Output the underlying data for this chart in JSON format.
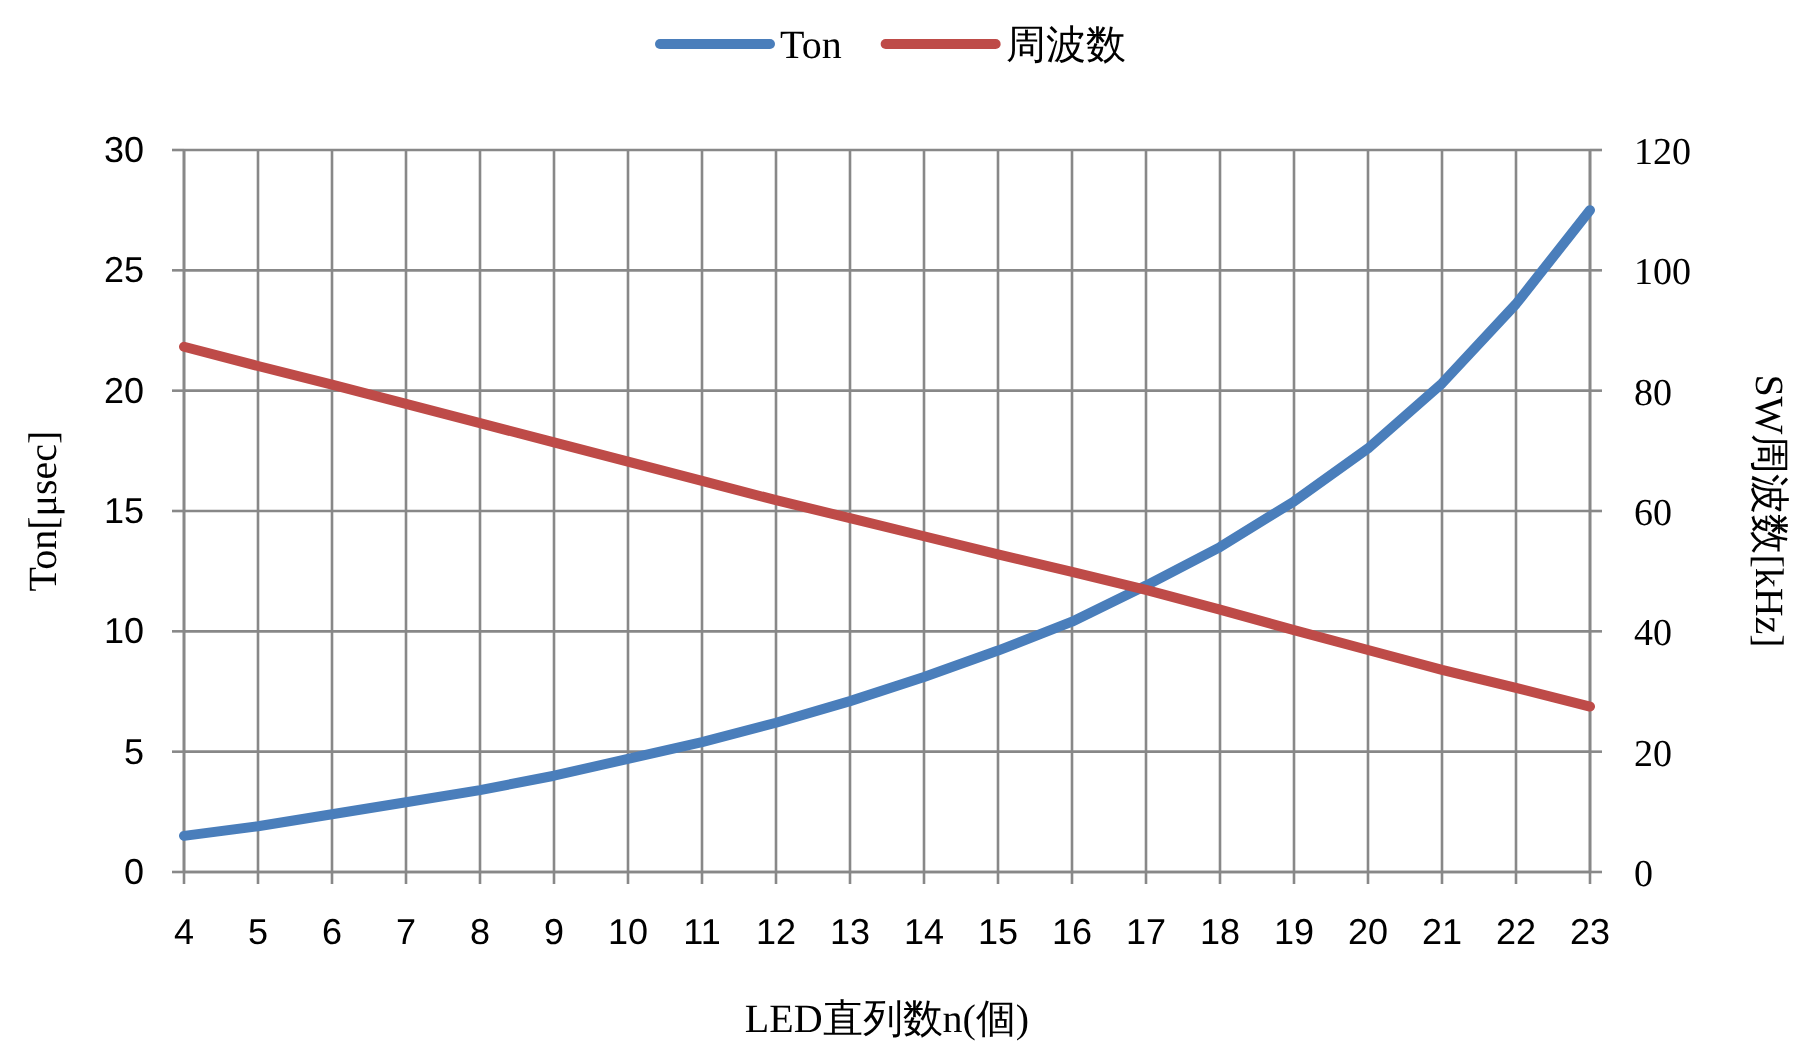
{
  "chart_data": {
    "type": "line",
    "xlabel": "LED直列数n(個)",
    "ylabel": "Ton[μsec]",
    "y2label": "SW周波数[kHz]",
    "categories": [
      "4",
      "5",
      "6",
      "7",
      "8",
      "9",
      "10",
      "11",
      "12",
      "13",
      "14",
      "15",
      "16",
      "17",
      "18",
      "19",
      "20",
      "21",
      "22",
      "23"
    ],
    "series": [
      {
        "name": "Ton",
        "color": "#4a7ebb",
        "values": [
          1.5,
          1.9,
          2.4,
          2.9,
          3.4,
          4.0,
          4.7,
          5.4,
          6.2,
          7.1,
          8.1,
          9.2,
          10.4,
          11.9,
          13.5,
          15.4,
          17.6,
          20.3,
          23.6,
          27.5
        ]
      },
      {
        "name": "周波数",
        "color": "#be4b48",
        "axis": "y2",
        "values": [
          87.3,
          84.1,
          81.0,
          77.8,
          74.6,
          71.4,
          68.2,
          65.0,
          61.8,
          58.8,
          55.8,
          52.8,
          49.9,
          46.9,
          43.6,
          40.2,
          36.9,
          33.6,
          30.6,
          27.5
        ]
      }
    ],
    "ylim": [
      0,
      30
    ],
    "yticks": [
      0,
      5,
      10,
      15,
      20,
      25,
      30
    ],
    "y2lim": [
      0,
      120
    ],
    "y2ticks": [
      0,
      20,
      40,
      60,
      80,
      100,
      120
    ],
    "grid": true,
    "legend": "top",
    "marker": "none",
    "line_style": "solid"
  }
}
